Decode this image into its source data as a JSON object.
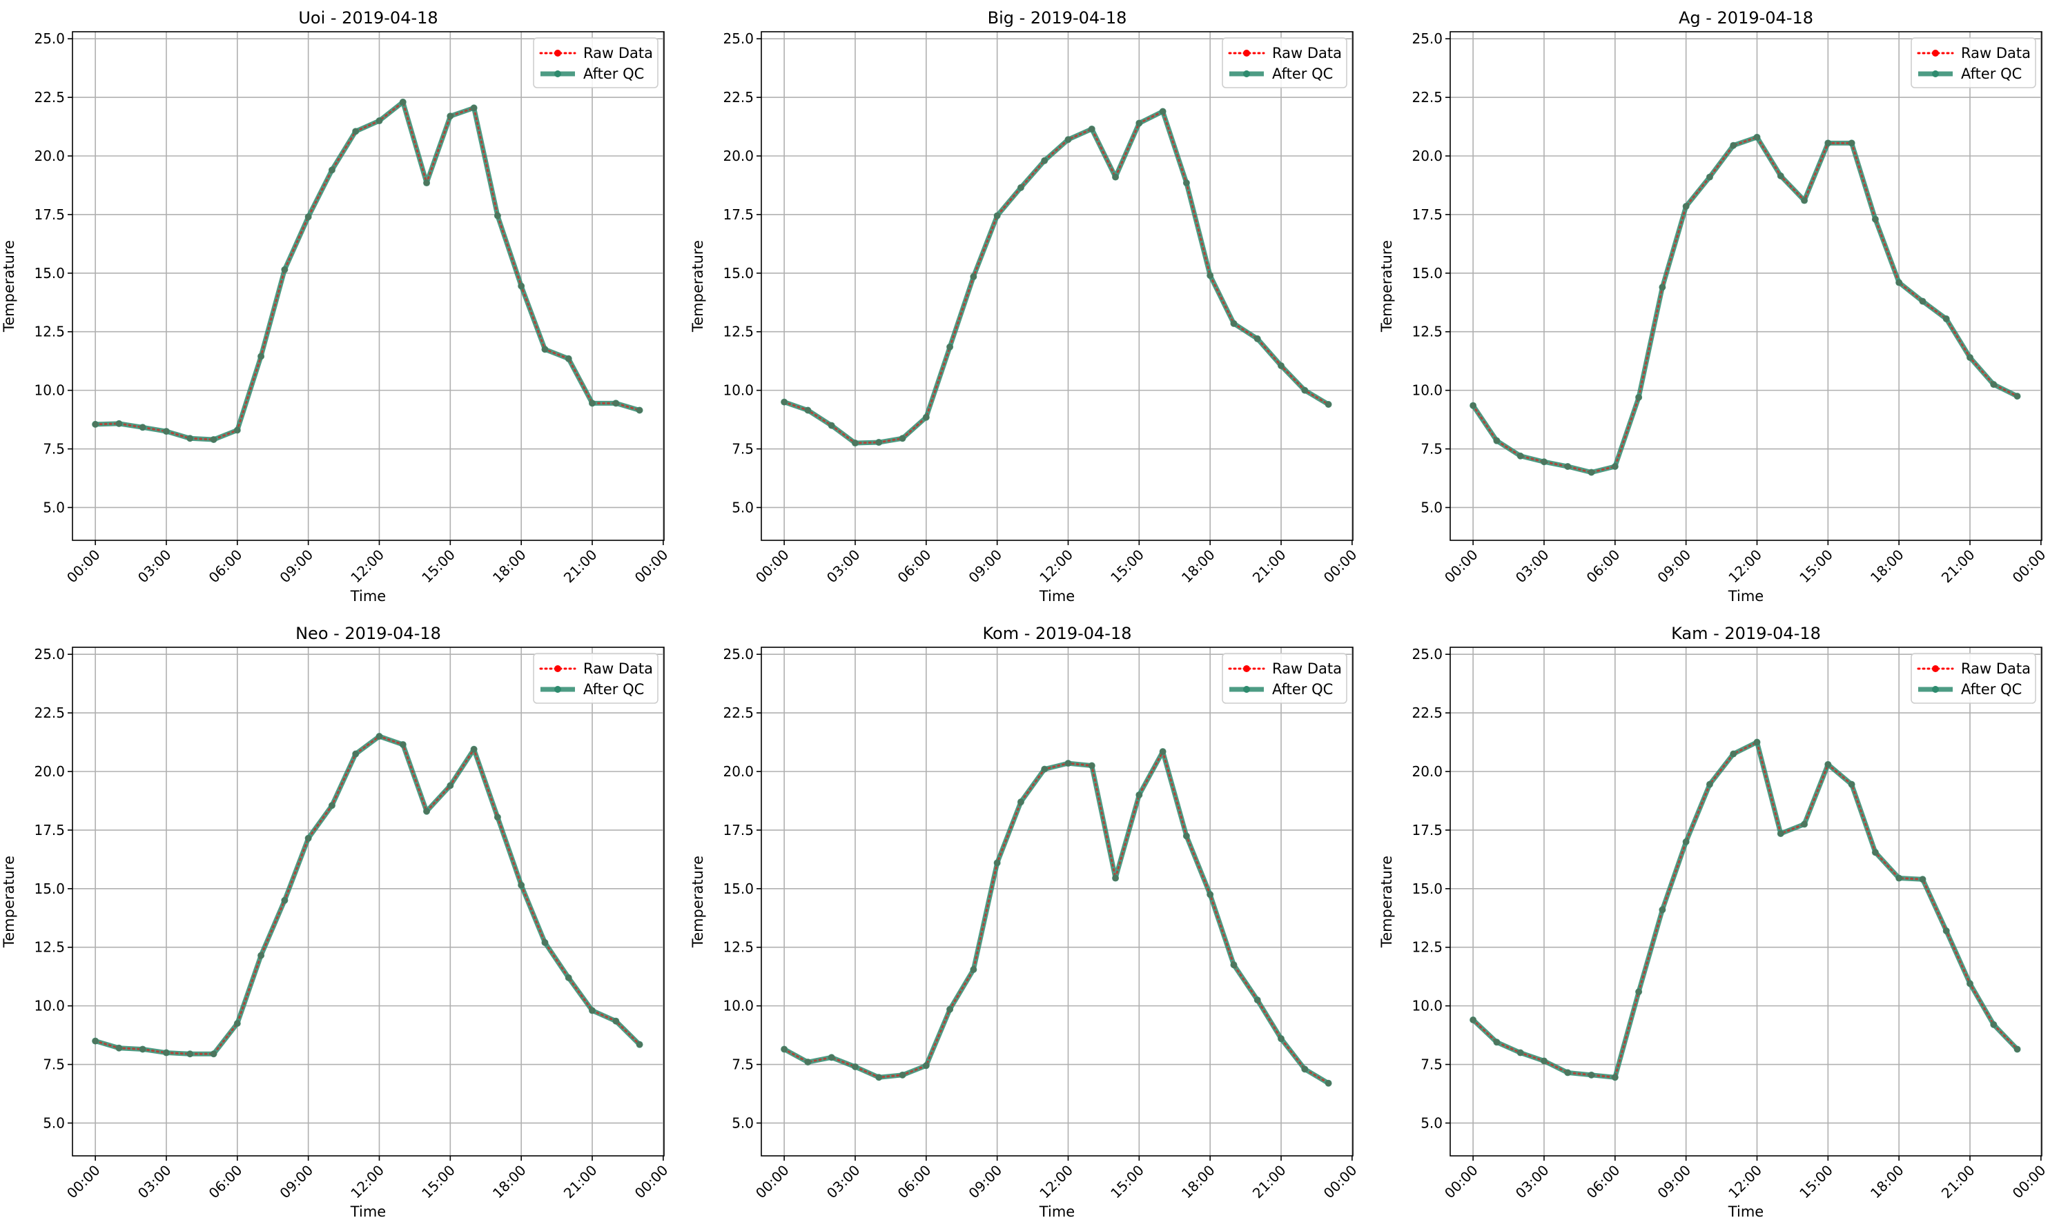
{
  "chart_data": [
    {
      "type": "line",
      "title": "Uoi - 2019-04-18",
      "xlabel": "Time",
      "ylabel": "Temperature",
      "ylim": [
        3.6,
        25.3
      ],
      "xlim": [
        "2019-04-17 23:02",
        "2019-04-19 00:02"
      ],
      "yticks": [
        5.0,
        7.5,
        10.0,
        12.5,
        15.0,
        17.5,
        20.0,
        22.5,
        25.0
      ],
      "xticks": [
        "00:00",
        "03:00",
        "06:00",
        "09:00",
        "12:00",
        "15:00",
        "18:00",
        "21:00",
        "00:00"
      ],
      "grid": true,
      "legend_position": "top-right",
      "x": [
        "00:00",
        "01:00",
        "02:00",
        "03:00",
        "04:00",
        "05:00",
        "06:00",
        "07:00",
        "08:00",
        "09:00",
        "10:00",
        "11:00",
        "12:00",
        "13:00",
        "14:00",
        "15:00",
        "16:00",
        "17:00",
        "18:00",
        "19:00",
        "20:00",
        "21:00",
        "22:00",
        "23:00"
      ],
      "series": [
        {
          "name": "Raw Data",
          "color": "#ff0000",
          "values": [
            8.55,
            8.58,
            8.42,
            8.25,
            7.95,
            7.9,
            8.3,
            11.45,
            15.15,
            17.4,
            19.4,
            21.05,
            21.5,
            22.3,
            18.85,
            21.7,
            22.05,
            17.45,
            14.45,
            11.75,
            11.35,
            9.45,
            9.45,
            9.15
          ]
        },
        {
          "name": "After QC",
          "color": "#2e8b6e",
          "values": [
            8.55,
            8.58,
            8.42,
            8.25,
            7.95,
            7.9,
            8.3,
            11.45,
            15.15,
            17.4,
            19.4,
            21.05,
            21.5,
            22.3,
            18.85,
            21.7,
            22.05,
            17.45,
            14.45,
            11.75,
            11.35,
            9.45,
            9.45,
            9.15
          ]
        }
      ]
    },
    {
      "type": "line",
      "title": "Big - 2019-04-18",
      "xlabel": "Time",
      "ylabel": "Temperature",
      "ylim": [
        3.6,
        25.3
      ],
      "xlim": [
        "2019-04-17 23:02",
        "2019-04-19 00:02"
      ],
      "yticks": [
        5.0,
        7.5,
        10.0,
        12.5,
        15.0,
        17.5,
        20.0,
        22.5,
        25.0
      ],
      "xticks": [
        "00:00",
        "03:00",
        "06:00",
        "09:00",
        "12:00",
        "15:00",
        "18:00",
        "21:00",
        "00:00"
      ],
      "grid": true,
      "legend_position": "top-right",
      "x": [
        "00:00",
        "01:00",
        "02:00",
        "03:00",
        "04:00",
        "05:00",
        "06:00",
        "07:00",
        "08:00",
        "09:00",
        "10:00",
        "11:00",
        "12:00",
        "13:00",
        "14:00",
        "15:00",
        "16:00",
        "17:00",
        "18:00",
        "19:00",
        "20:00",
        "21:00",
        "22:00",
        "23:00"
      ],
      "series": [
        {
          "name": "Raw Data",
          "color": "#ff0000",
          "values": [
            9.5,
            9.15,
            8.5,
            7.75,
            7.78,
            7.95,
            8.85,
            11.85,
            14.85,
            17.45,
            18.65,
            19.8,
            20.7,
            21.15,
            19.1,
            21.4,
            21.9,
            18.85,
            14.9,
            12.85,
            12.2,
            11.05,
            10.0,
            9.4
          ]
        },
        {
          "name": "After QC",
          "color": "#2e8b6e",
          "values": [
            9.5,
            9.15,
            8.5,
            7.75,
            7.78,
            7.95,
            8.85,
            11.85,
            14.85,
            17.45,
            18.65,
            19.8,
            20.7,
            21.15,
            19.1,
            21.4,
            21.9,
            18.85,
            14.9,
            12.85,
            12.2,
            11.05,
            10.0,
            9.4
          ]
        }
      ]
    },
    {
      "type": "line",
      "title": "Ag - 2019-04-18",
      "xlabel": "Time",
      "ylabel": "Temperature",
      "ylim": [
        3.6,
        25.3
      ],
      "xlim": [
        "2019-04-17 23:02",
        "2019-04-19 00:02"
      ],
      "yticks": [
        5.0,
        7.5,
        10.0,
        12.5,
        15.0,
        17.5,
        20.0,
        22.5,
        25.0
      ],
      "xticks": [
        "00:00",
        "03:00",
        "06:00",
        "09:00",
        "12:00",
        "15:00",
        "18:00",
        "21:00",
        "00:00"
      ],
      "grid": true,
      "legend_position": "top-right",
      "x": [
        "00:00",
        "01:00",
        "02:00",
        "03:00",
        "04:00",
        "05:00",
        "06:00",
        "07:00",
        "08:00",
        "09:00",
        "10:00",
        "11:00",
        "12:00",
        "13:00",
        "14:00",
        "15:00",
        "16:00",
        "17:00",
        "18:00",
        "19:00",
        "20:00",
        "21:00",
        "22:00",
        "23:00"
      ],
      "series": [
        {
          "name": "Raw Data",
          "color": "#ff0000",
          "values": [
            9.35,
            7.85,
            7.2,
            6.95,
            6.75,
            6.5,
            6.75,
            9.7,
            14.4,
            17.85,
            19.1,
            20.45,
            20.8,
            19.15,
            18.1,
            20.55,
            20.55,
            17.3,
            14.6,
            13.8,
            13.05,
            11.4,
            10.25,
            9.75
          ]
        },
        {
          "name": "After QC",
          "color": "#2e8b6e",
          "values": [
            9.35,
            7.85,
            7.2,
            6.95,
            6.75,
            6.5,
            6.75,
            9.7,
            14.4,
            17.85,
            19.1,
            20.45,
            20.8,
            19.15,
            18.1,
            20.55,
            20.55,
            17.3,
            14.6,
            13.8,
            13.05,
            11.4,
            10.25,
            9.75
          ]
        }
      ]
    },
    {
      "type": "line",
      "title": "Neo - 2019-04-18",
      "xlabel": "Time",
      "ylabel": "Temperature",
      "ylim": [
        3.6,
        25.3
      ],
      "xlim": [
        "2019-04-17 23:02",
        "2019-04-19 00:02"
      ],
      "yticks": [
        5.0,
        7.5,
        10.0,
        12.5,
        15.0,
        17.5,
        20.0,
        22.5,
        25.0
      ],
      "xticks": [
        "00:00",
        "03:00",
        "06:00",
        "09:00",
        "12:00",
        "15:00",
        "18:00",
        "21:00",
        "00:00"
      ],
      "grid": true,
      "legend_position": "top-right",
      "x": [
        "00:00",
        "01:00",
        "02:00",
        "03:00",
        "04:00",
        "05:00",
        "06:00",
        "07:00",
        "08:00",
        "09:00",
        "10:00",
        "11:00",
        "12:00",
        "13:00",
        "14:00",
        "15:00",
        "16:00",
        "17:00",
        "18:00",
        "19:00",
        "20:00",
        "21:00",
        "22:00",
        "23:00"
      ],
      "series": [
        {
          "name": "Raw Data",
          "color": "#ff0000",
          "values": [
            8.5,
            8.2,
            8.15,
            8.0,
            7.95,
            7.95,
            9.25,
            12.15,
            14.5,
            17.15,
            18.55,
            20.75,
            21.5,
            21.15,
            18.3,
            19.4,
            20.95,
            18.05,
            15.15,
            12.7,
            11.2,
            9.8,
            9.35,
            8.35
          ]
        },
        {
          "name": "After QC",
          "color": "#2e8b6e",
          "values": [
            8.5,
            8.2,
            8.15,
            8.0,
            7.95,
            7.95,
            9.25,
            12.15,
            14.5,
            17.15,
            18.55,
            20.75,
            21.5,
            21.15,
            18.3,
            19.4,
            20.95,
            18.05,
            15.15,
            12.7,
            11.2,
            9.8,
            9.35,
            8.35
          ]
        }
      ]
    },
    {
      "type": "line",
      "title": "Kom - 2019-04-18",
      "xlabel": "Time",
      "ylabel": "Temperature",
      "ylim": [
        3.6,
        25.3
      ],
      "xlim": [
        "2019-04-17 23:02",
        "2019-04-19 00:02"
      ],
      "yticks": [
        5.0,
        7.5,
        10.0,
        12.5,
        15.0,
        17.5,
        20.0,
        22.5,
        25.0
      ],
      "xticks": [
        "00:00",
        "03:00",
        "06:00",
        "09:00",
        "12:00",
        "15:00",
        "18:00",
        "21:00",
        "00:00"
      ],
      "grid": true,
      "legend_position": "top-right",
      "x": [
        "00:00",
        "01:00",
        "02:00",
        "03:00",
        "04:00",
        "05:00",
        "06:00",
        "07:00",
        "08:00",
        "09:00",
        "10:00",
        "11:00",
        "12:00",
        "13:00",
        "14:00",
        "15:00",
        "16:00",
        "17:00",
        "18:00",
        "19:00",
        "20:00",
        "21:00",
        "22:00",
        "23:00"
      ],
      "series": [
        {
          "name": "Raw Data",
          "color": "#ff0000",
          "values": [
            8.15,
            7.6,
            7.8,
            7.4,
            6.95,
            7.05,
            7.45,
            9.85,
            11.55,
            16.1,
            18.7,
            20.1,
            20.35,
            20.25,
            15.45,
            19.0,
            20.85,
            17.25,
            14.75,
            11.75,
            10.25,
            8.6,
            7.3,
            6.7
          ]
        },
        {
          "name": "After QC",
          "color": "#2e8b6e",
          "values": [
            8.15,
            7.6,
            7.8,
            7.4,
            6.95,
            7.05,
            7.45,
            9.85,
            11.55,
            16.1,
            18.7,
            20.1,
            20.35,
            20.25,
            15.45,
            19.0,
            20.85,
            17.25,
            14.75,
            11.75,
            10.25,
            8.6,
            7.3,
            6.7
          ]
        }
      ]
    },
    {
      "type": "line",
      "title": "Kam - 2019-04-18",
      "xlabel": "Time",
      "ylabel": "Temperature",
      "ylim": [
        3.6,
        25.3
      ],
      "xlim": [
        "2019-04-17 23:02",
        "2019-04-19 00:02"
      ],
      "yticks": [
        5.0,
        7.5,
        10.0,
        12.5,
        15.0,
        17.5,
        20.0,
        22.5,
        25.0
      ],
      "xticks": [
        "00:00",
        "03:00",
        "06:00",
        "09:00",
        "12:00",
        "15:00",
        "18:00",
        "21:00",
        "00:00"
      ],
      "grid": true,
      "legend_position": "top-right",
      "x": [
        "00:00",
        "01:00",
        "02:00",
        "03:00",
        "04:00",
        "05:00",
        "06:00",
        "07:00",
        "08:00",
        "09:00",
        "10:00",
        "11:00",
        "12:00",
        "13:00",
        "14:00",
        "15:00",
        "16:00",
        "17:00",
        "18:00",
        "19:00",
        "20:00",
        "21:00",
        "22:00",
        "23:00"
      ],
      "series": [
        {
          "name": "Raw Data",
          "color": "#ff0000",
          "values": [
            9.4,
            8.45,
            8.0,
            7.65,
            7.15,
            7.05,
            6.95,
            10.6,
            14.1,
            17.0,
            19.45,
            20.75,
            21.25,
            17.35,
            17.75,
            20.3,
            19.45,
            16.55,
            15.45,
            15.4,
            13.2,
            10.95,
            9.2,
            8.15
          ]
        },
        {
          "name": "After QC",
          "color": "#2e8b6e",
          "values": [
            9.4,
            8.45,
            8.0,
            7.65,
            7.15,
            7.05,
            6.95,
            10.6,
            14.1,
            17.0,
            19.45,
            20.75,
            21.25,
            17.35,
            17.75,
            20.3,
            19.45,
            16.55,
            15.45,
            15.4,
            13.2,
            10.95,
            9.2,
            8.15
          ]
        }
      ]
    }
  ]
}
